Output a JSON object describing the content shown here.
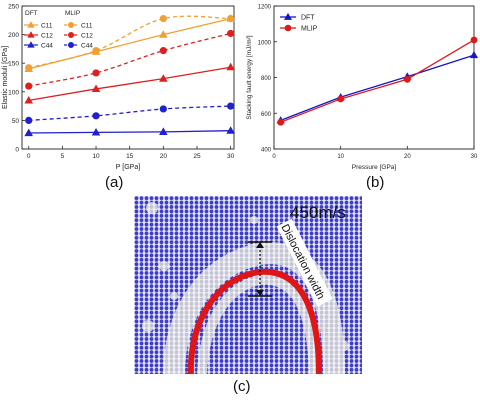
{
  "panels": {
    "a": {
      "label": "(a)"
    },
    "b": {
      "label": "(b)"
    },
    "c": {
      "label": "(c)",
      "velocity_text": "450m/s",
      "annotation": "Dislocation width"
    }
  },
  "colors": {
    "c11": "#f0a030",
    "c12": "#dd2020",
    "c44": "#2020cc",
    "dft_b": "#1515cc",
    "mlip_b": "#dd1a1a",
    "atoms": "#3d3dcc",
    "atoms_disordered": "#c8c8d8",
    "dislocation": "#e01515"
  },
  "chart_data": [
    {
      "type": "line",
      "xlabel": "P [GPa]",
      "ylabel": "Elastic moduli [GPa]",
      "xlim": [
        -1,
        30.5
      ],
      "ylim": [
        0,
        250
      ],
      "xticks": [
        0,
        5,
        10,
        15,
        20,
        25,
        30
      ],
      "yticks": [
        0,
        50,
        100,
        150,
        200,
        250
      ],
      "legend_placement": "top-left",
      "legend_headers": [
        "DFT",
        "MLIP"
      ],
      "series": [
        {
          "name": "C11",
          "group": "DFT",
          "color_key": "c11",
          "marker": "triangle",
          "dashed": false,
          "x": [
            0,
            10,
            20,
            30
          ],
          "y": [
            140,
            170,
            200,
            228
          ]
        },
        {
          "name": "C12",
          "group": "DFT",
          "color_key": "c12",
          "marker": "triangle",
          "dashed": false,
          "x": [
            0,
            10,
            20,
            30
          ],
          "y": [
            85,
            105,
            123,
            143
          ]
        },
        {
          "name": "C44",
          "group": "DFT",
          "color_key": "c44",
          "marker": "triangle",
          "dashed": false,
          "x": [
            0,
            10,
            20,
            30
          ],
          "y": [
            28,
            29,
            30,
            32
          ]
        },
        {
          "name": "C11",
          "group": "MLIP",
          "color_key": "c11",
          "marker": "circle",
          "dashed": true,
          "x": [
            0,
            10,
            20,
            30
          ],
          "y": [
            142,
            172,
            228,
            228
          ]
        },
        {
          "name": "C12",
          "group": "MLIP",
          "color_key": "c12",
          "marker": "circle",
          "dashed": true,
          "x": [
            0,
            10,
            20,
            30
          ],
          "y": [
            110,
            133,
            172,
            202
          ]
        },
        {
          "name": "C44",
          "group": "MLIP",
          "color_key": "c44",
          "marker": "circle",
          "dashed": true,
          "x": [
            0,
            10,
            20,
            30
          ],
          "y": [
            50,
            58,
            70,
            75
          ]
        }
      ]
    },
    {
      "type": "line",
      "xlabel": "Pressure [GPa]",
      "ylabel": "Stacking fault energy [mJ/m²]",
      "xlim": [
        0,
        30
      ],
      "ylim": [
        400,
        1200
      ],
      "xticks": [
        0,
        10,
        20,
        30
      ],
      "yticks": [
        400,
        600,
        800,
        1000,
        1200
      ],
      "legend_placement": "top-left",
      "series": [
        {
          "name": "DFT",
          "color_key": "dft_b",
          "marker": "triangle",
          "x": [
            1,
            10,
            20,
            30
          ],
          "y": [
            560,
            690,
            805,
            925
          ]
        },
        {
          "name": "MLIP",
          "color_key": "mlip_b",
          "marker": "circle",
          "x": [
            1,
            10,
            20,
            30
          ],
          "y": [
            550,
            680,
            790,
            1010
          ]
        }
      ]
    }
  ]
}
